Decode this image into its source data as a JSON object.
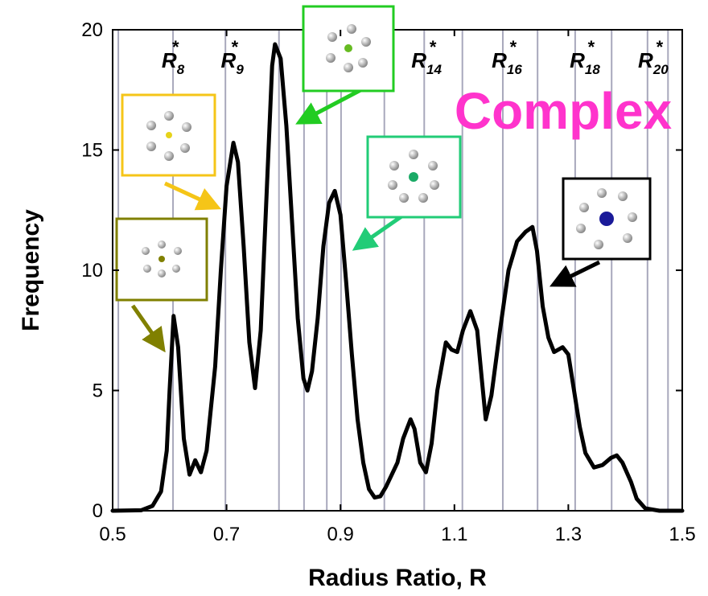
{
  "chart_data": {
    "type": "line",
    "x_label": "Radius Ratio, R",
    "y_label": "Frequency",
    "annotation": "Complex",
    "xlim": [
      0.5,
      1.5
    ],
    "xticks": [
      0.5,
      0.7,
      0.9,
      1.1,
      1.3,
      1.5
    ],
    "ylim": [
      0,
      20
    ],
    "yticks": [
      0,
      5,
      10,
      15,
      20
    ],
    "reference_lines": [
      0.51,
      0.606,
      0.698,
      0.792,
      0.836,
      0.876,
      0.901,
      0.977,
      1.047,
      1.114,
      1.185,
      1.246,
      1.312,
      1.376,
      1.439,
      1.475
    ],
    "reference_color": "#a8a8bc",
    "reference_labels": [
      {
        "value": 0.606,
        "base": "R",
        "sub": "8",
        "sup": "*"
      },
      {
        "value": 0.71,
        "base": "R",
        "sub": "9",
        "sup": "*"
      },
      {
        "value": 1.051,
        "base": "R",
        "sub": "14",
        "sup": "*"
      },
      {
        "value": 1.192,
        "base": "R",
        "sub": "16",
        "sup": "*"
      },
      {
        "value": 1.329,
        "base": "R",
        "sub": "18",
        "sup": "*"
      },
      {
        "value": 1.449,
        "base": "R",
        "sub": "20",
        "sup": "*"
      }
    ],
    "series": [
      {
        "color": "#000000",
        "x": [
          0.5,
          0.55,
          0.57,
          0.585,
          0.595,
          0.6,
          0.607,
          0.615,
          0.625,
          0.635,
          0.645,
          0.655,
          0.665,
          0.68,
          0.69,
          0.7,
          0.712,
          0.72,
          0.73,
          0.74,
          0.75,
          0.76,
          0.77,
          0.78,
          0.785,
          0.795,
          0.805,
          0.815,
          0.825,
          0.835,
          0.842,
          0.85,
          0.86,
          0.87,
          0.88,
          0.89,
          0.9,
          0.91,
          0.92,
          0.93,
          0.94,
          0.95,
          0.96,
          0.97,
          0.98,
          0.99,
          1.0,
          1.01,
          1.023,
          1.03,
          1.04,
          1.05,
          1.06,
          1.07,
          1.085,
          1.095,
          1.105,
          1.115,
          1.128,
          1.14,
          1.148,
          1.155,
          1.165,
          1.18,
          1.195,
          1.21,
          1.225,
          1.237,
          1.245,
          1.255,
          1.265,
          1.275,
          1.29,
          1.3,
          1.31,
          1.32,
          1.33,
          1.345,
          1.36,
          1.375,
          1.385,
          1.395,
          1.41,
          1.42,
          1.435,
          1.46,
          1.5
        ],
        "values": [
          0,
          0.02,
          0.2,
          0.8,
          2.5,
          5,
          8.1,
          6.8,
          3,
          1.5,
          2.1,
          1.6,
          2.5,
          6,
          10,
          13.5,
          15.3,
          14.5,
          11,
          7,
          5.1,
          7.5,
          13,
          18.5,
          19.4,
          18.8,
          16,
          12,
          8,
          5.5,
          5,
          5.8,
          8,
          11,
          12.8,
          13.3,
          12.3,
          9.5,
          6.5,
          3.8,
          2,
          0.9,
          0.55,
          0.6,
          1,
          1.5,
          2,
          3,
          3.8,
          3.4,
          2,
          1.6,
          2.8,
          5,
          7,
          6.7,
          6.6,
          7.5,
          8.3,
          7.5,
          5.5,
          3.8,
          4.8,
          7.5,
          10,
          11.2,
          11.6,
          11.8,
          10.8,
          8.5,
          7.2,
          6.6,
          6.8,
          6.5,
          5,
          3.5,
          2.4,
          1.8,
          1.9,
          2.2,
          2.3,
          2,
          1.2,
          0.5,
          0.1,
          0,
          0
        ]
      }
    ]
  }
}
